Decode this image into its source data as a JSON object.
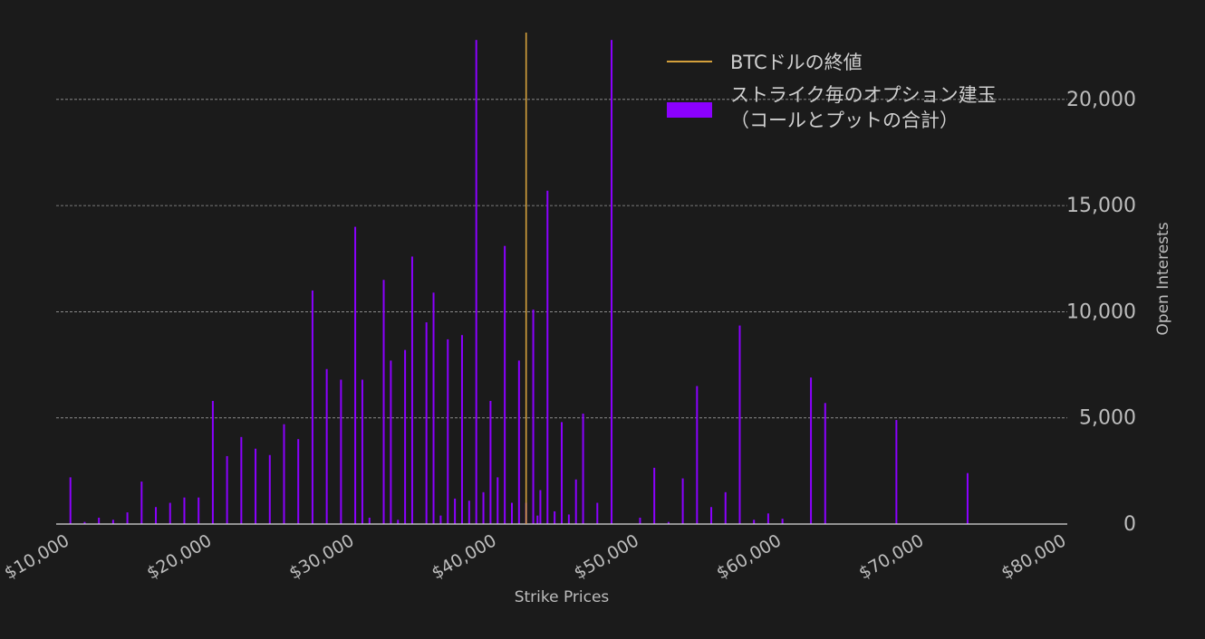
{
  "chart_data": {
    "type": "bar",
    "xlabel": "Strike Prices",
    "ylabel": "Open Interests",
    "xlim": [
      9000,
      80000
    ],
    "ylim": [
      0,
      24000
    ],
    "x_ticks": [
      10000,
      20000,
      30000,
      40000,
      50000,
      60000,
      70000,
      80000
    ],
    "x_tick_labels": [
      "$10,000",
      "$20,000",
      "$30,000",
      "$40,000",
      "$50,000",
      "$60,000",
      "$70,000",
      "$80,000"
    ],
    "y_ticks": [
      0,
      5000,
      10000,
      15000,
      20000
    ],
    "y_tick_labels": [
      "0",
      "5,000",
      "10,000",
      "15,000",
      "20,000"
    ],
    "y_axis_position": "right",
    "grid": "horizontal dashed",
    "legend_position": "top-right",
    "close_price": 42000,
    "series": [
      {
        "name": "ストライク毎のオプション建玉（コールとプットの合計）",
        "color": "#8b00ff",
        "x": [
          10000,
          11000,
          12000,
          13000,
          14000,
          15000,
          16000,
          17000,
          18000,
          19000,
          20000,
          21000,
          22000,
          23000,
          24000,
          25000,
          26000,
          27000,
          28000,
          29000,
          30000,
          30500,
          31000,
          32000,
          32500,
          33000,
          33500,
          34000,
          35000,
          35500,
          36000,
          36500,
          37000,
          37500,
          38000,
          38500,
          39000,
          39500,
          40000,
          40500,
          41000,
          41500,
          42000,
          42500,
          42800,
          43000,
          43500,
          44000,
          44500,
          45000,
          45500,
          46000,
          47000,
          48000,
          50000,
          51000,
          52000,
          53000,
          54000,
          55000,
          56000,
          57000,
          58000,
          59000,
          60000,
          62000,
          63000,
          68000,
          73000,
          80000
        ],
        "values": [
          2200,
          100,
          300,
          200,
          550,
          2000,
          800,
          1000,
          1250,
          1250,
          5800,
          3200,
          4100,
          3550,
          3250,
          4700,
          4000,
          11000,
          7300,
          6800,
          14000,
          6800,
          300,
          11500,
          7700,
          200,
          8200,
          12600,
          9500,
          10900,
          400,
          8700,
          1200,
          8900,
          1100,
          22800,
          1500,
          5800,
          2200,
          13100,
          1000,
          7700,
          1000,
          10100,
          400,
          1600,
          15700,
          600,
          4800,
          450,
          2100,
          5200,
          1000,
          22800,
          300,
          2650,
          100,
          2150,
          6500,
          800,
          1500,
          9350,
          200,
          500,
          250,
          6900,
          5700,
          4900,
          2400,
          0
        ]
      },
      {
        "name": "BTCドルの終値",
        "color": "#d4a03c",
        "type": "line"
      }
    ]
  }
}
